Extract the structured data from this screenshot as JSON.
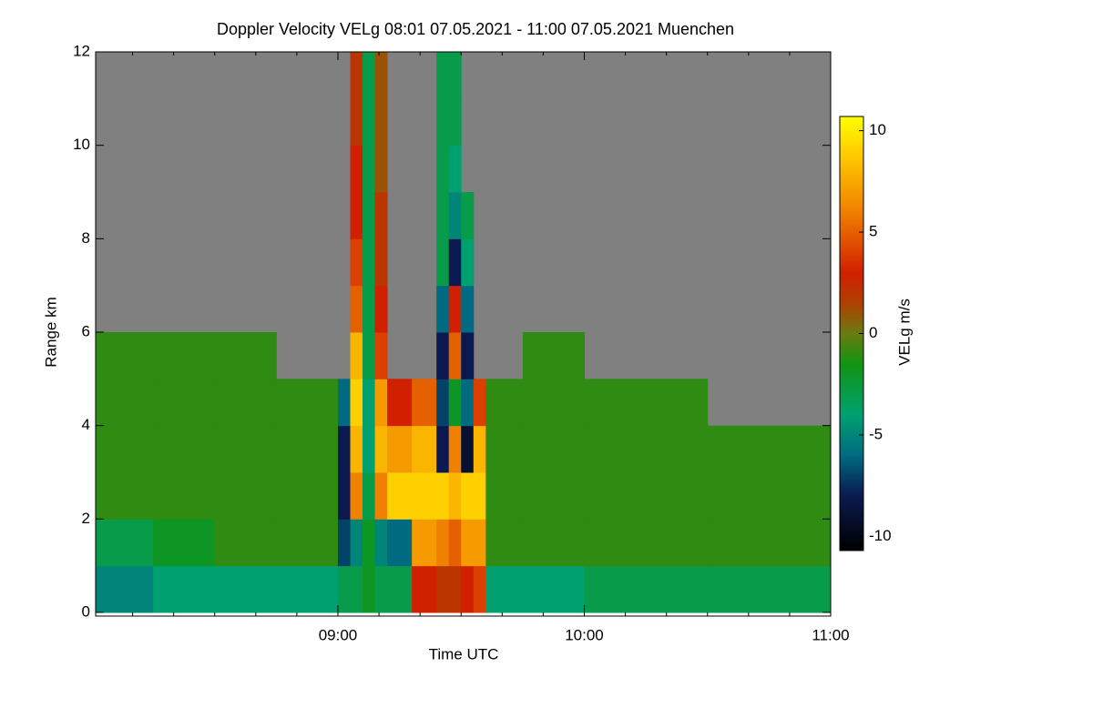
{
  "chart_data": {
    "type": "heatmap",
    "title": "Doppler Velocity VELg   08:01 07.05.2021 - 11:00 07.05.2021 Muenchen",
    "x_label": "Time UTC",
    "y_label": "Range km",
    "colorbar_label": "VELg m/s",
    "xlim": [
      8.0167,
      11.0
    ],
    "xticks": [
      {
        "value": 9,
        "label": "09:00"
      },
      {
        "value": 10,
        "label": "10:00"
      },
      {
        "value": 11,
        "label": "11:00"
      }
    ],
    "xminorticks": [
      8.1667,
      8.3333,
      8.5,
      8.6667,
      8.8333,
      9.1667,
      9.3333,
      9.5,
      9.6667,
      9.8333,
      10.1667,
      10.3333,
      10.5,
      10.6667,
      10.8333
    ],
    "ylim": [
      0,
      12
    ],
    "yticks": [
      0,
      2,
      4,
      6,
      8,
      10,
      12
    ],
    "zlim": [
      -10.7,
      10.7
    ],
    "zticks": [
      -10,
      -5,
      0,
      5,
      10
    ],
    "missing_color": "#808080",
    "colormap": [
      {
        "value": -10.7,
        "color": "#000000"
      },
      {
        "value": -8,
        "color": "#0a1a50"
      },
      {
        "value": -6,
        "color": "#006a80"
      },
      {
        "value": -4,
        "color": "#00a070"
      },
      {
        "value": -1.5,
        "color": "#129412"
      },
      {
        "value": 0,
        "color": "#6a7a10"
      },
      {
        "value": 1.5,
        "color": "#b04000"
      },
      {
        "value": 3,
        "color": "#d02000"
      },
      {
        "value": 6,
        "color": "#f08000"
      },
      {
        "value": 9,
        "color": "#ffd000"
      },
      {
        "value": 10.7,
        "color": "#ffff00"
      }
    ],
    "xbins": [
      8.0167,
      8.25,
      8.5,
      8.75,
      9.0,
      9.05,
      9.1,
      9.15,
      9.2,
      9.3,
      9.4,
      9.45,
      9.5,
      9.55,
      9.6,
      9.75,
      10.0,
      10.5,
      11.0
    ],
    "ybins": [
      0,
      1,
      2,
      3,
      4,
      5,
      6,
      7,
      8,
      9,
      10,
      11,
      12
    ],
    "z": [
      [
        -5,
        -4,
        -4,
        -4,
        -3,
        -3,
        -2,
        -3,
        -3,
        3,
        2,
        2,
        3,
        4,
        -4,
        -4,
        -3,
        -3
      ],
      [
        -3,
        -2,
        -1,
        -1,
        -7,
        -5,
        -2,
        -5,
        -6,
        7,
        6,
        5,
        7,
        7,
        -1,
        -1,
        -1,
        -1
      ],
      [
        -1,
        -1,
        -1,
        -1,
        -8,
        6,
        -3,
        6,
        9,
        9,
        9,
        8,
        9,
        9,
        -1,
        -1,
        -1,
        -1
      ],
      [
        -1,
        -1,
        -1,
        -1,
        -8,
        8,
        -4,
        8,
        7,
        8,
        -8,
        6,
        -9,
        8,
        -1,
        -1,
        -1,
        -1
      ],
      [
        -1,
        -1,
        -1,
        -1,
        -6,
        9,
        -4,
        7,
        3,
        5,
        -7,
        -2,
        -6,
        4,
        -1,
        -1,
        -1,
        null
      ],
      [
        -1,
        -1,
        -1,
        null,
        null,
        8,
        -3,
        4,
        null,
        null,
        -8,
        5,
        -8,
        null,
        null,
        -1,
        null,
        null
      ],
      [
        null,
        null,
        null,
        null,
        null,
        5,
        -3,
        3,
        null,
        null,
        -6,
        3,
        -6,
        null,
        null,
        null,
        null,
        null
      ],
      [
        null,
        null,
        null,
        null,
        null,
        4,
        -3,
        2,
        null,
        null,
        -3,
        -8,
        -4,
        null,
        null,
        null,
        null,
        null
      ],
      [
        null,
        null,
        null,
        null,
        null,
        3,
        -3,
        2,
        null,
        null,
        -3,
        -5,
        -3,
        null,
        null,
        null,
        null,
        null
      ],
      [
        null,
        null,
        null,
        null,
        null,
        3,
        -3,
        1,
        null,
        null,
        -3,
        -4,
        null,
        null,
        null,
        null,
        null,
        null
      ],
      [
        null,
        null,
        null,
        null,
        null,
        2,
        -3,
        1,
        null,
        null,
        -3,
        -3,
        null,
        null,
        null,
        null,
        null,
        null
      ],
      [
        null,
        null,
        null,
        null,
        null,
        2,
        -3,
        1,
        null,
        null,
        -3,
        -3,
        null,
        null,
        null,
        null,
        null,
        null
      ]
    ]
  }
}
